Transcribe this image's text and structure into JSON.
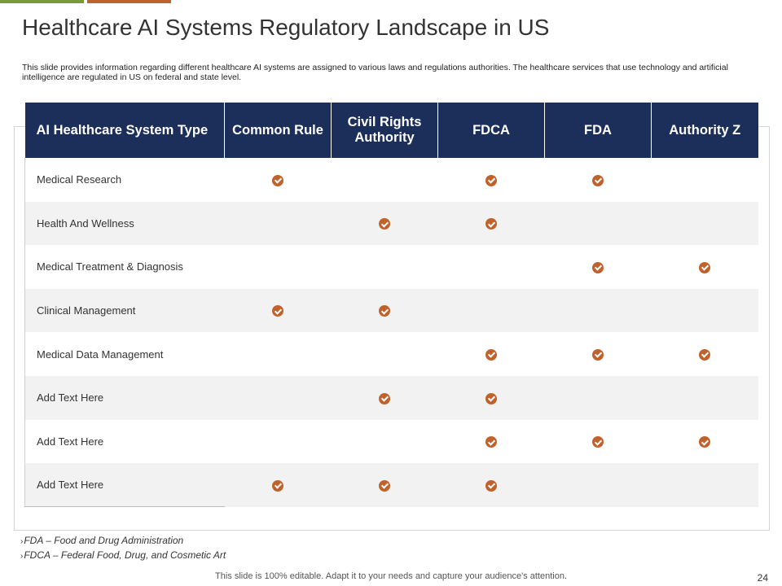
{
  "title": "Healthcare AI Systems Regulatory Landscape in US",
  "description": "This slide provides information regarding different healthcare AI systems are assigned to various laws and regulations authorities. The healthcare services that use technology and artificial intelligence are regulated in US on federal and state level.",
  "table": {
    "headers": [
      "AI Healthcare System Type",
      "Common Rule",
      "Civil Rights Authority",
      "FDCA",
      "FDA",
      "Authority Z"
    ],
    "rows": [
      {
        "label": "Medical Research",
        "marks": [
          true,
          false,
          true,
          true,
          false
        ]
      },
      {
        "label": "Health And Wellness",
        "marks": [
          false,
          true,
          true,
          false,
          false
        ]
      },
      {
        "label": "Medical Treatment  & Diagnosis",
        "marks": [
          false,
          false,
          false,
          true,
          true
        ]
      },
      {
        "label": "Clinical Management",
        "marks": [
          true,
          true,
          false,
          false,
          false
        ]
      },
      {
        "label": "Medical Data Management",
        "marks": [
          false,
          false,
          true,
          true,
          true
        ]
      },
      {
        "label": "Add Text Here",
        "marks": [
          false,
          true,
          true,
          false,
          false
        ]
      },
      {
        "label": "Add Text Here",
        "marks": [
          false,
          false,
          true,
          true,
          true
        ]
      },
      {
        "label": "Add Text Here",
        "marks": [
          true,
          true,
          true,
          false,
          false
        ]
      }
    ]
  },
  "notes": [
    {
      "bullet": "›",
      "text": "FDA – Food and Drug Administration"
    },
    {
      "bullet": "›",
      "text": "FDCA – Federal Food, Drug, and Cosmetic Art"
    }
  ],
  "footer": "This slide is 100% editable. Adapt it to your needs and capture your audience's attention.",
  "page_number": "24",
  "colors": {
    "header_bg": "#1b2f5a",
    "check": "#c0622b",
    "accent_green": "#7a9a3a",
    "accent_orange": "#c0622b"
  },
  "icons": {
    "check": "check-circle-icon"
  }
}
